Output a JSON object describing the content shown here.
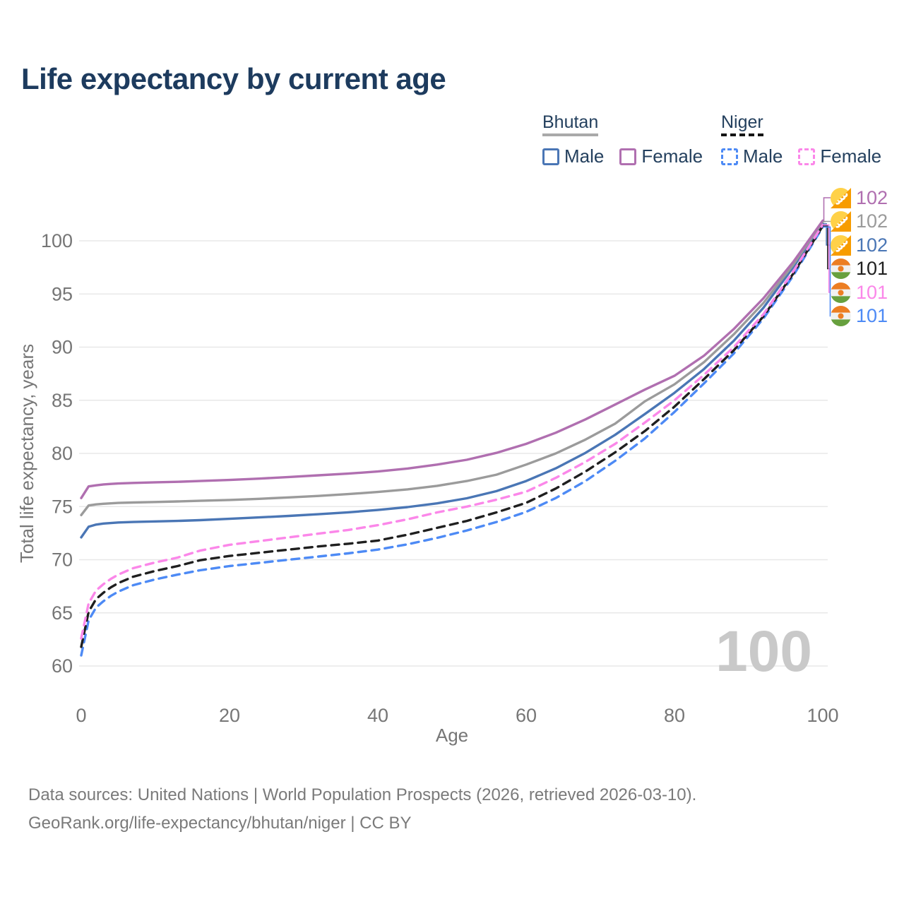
{
  "title": "Life expectancy by current age",
  "legend": {
    "groups": [
      {
        "name": "Bhutan",
        "line_style": "solid",
        "items": [
          {
            "label": "Male",
            "color": "#4a76b5",
            "dash": false
          },
          {
            "label": "Female",
            "color": "#b06fb0",
            "dash": false
          }
        ]
      },
      {
        "name": "Niger",
        "line_style": "dashed",
        "items": [
          {
            "label": "Male",
            "color": "#4d8af5",
            "dash": true
          },
          {
            "label": "Female",
            "color": "#fb87e9",
            "dash": true
          }
        ]
      }
    ]
  },
  "chart_data": {
    "type": "line",
    "title": "Life expectancy by current age",
    "xlabel": "Age",
    "ylabel": "Total life expectancy, years",
    "xlim": [
      0,
      100
    ],
    "ylim": [
      58.5,
      103
    ],
    "x_ticks": [
      0,
      20,
      40,
      60,
      80,
      100
    ],
    "y_ticks": [
      60,
      65,
      70,
      75,
      80,
      85,
      90,
      95,
      100
    ],
    "grid": "horizontal",
    "legend_position": "top-right",
    "age_counter_watermark": "100",
    "x": [
      0,
      1,
      2,
      3,
      4,
      5,
      7,
      10,
      13,
      16,
      20,
      24,
      28,
      32,
      36,
      40,
      44,
      48,
      52,
      56,
      60,
      64,
      68,
      72,
      76,
      80,
      84,
      88,
      92,
      96,
      100
    ],
    "series": [
      {
        "id": "bhutan-male",
        "country": "Bhutan",
        "sex": "Male",
        "color": "#4a76b5",
        "dash": false,
        "values": [
          72.1,
          73.1,
          73.3,
          73.4,
          73.45,
          73.5,
          73.55,
          73.6,
          73.65,
          73.72,
          73.85,
          73.98,
          74.12,
          74.28,
          74.46,
          74.68,
          74.95,
          75.3,
          75.78,
          76.45,
          77.4,
          78.6,
          80.05,
          81.75,
          83.7,
          85.7,
          87.95,
          90.6,
          93.7,
          97.5,
          101.6
        ]
      },
      {
        "id": "bhutan-both",
        "country": "Bhutan",
        "sex": "Both sexes",
        "color": "#9b9b9b",
        "dash": false,
        "values": [
          74.2,
          75.1,
          75.2,
          75.26,
          75.3,
          75.34,
          75.38,
          75.43,
          75.48,
          75.54,
          75.62,
          75.73,
          75.86,
          76.0,
          76.17,
          76.37,
          76.62,
          76.95,
          77.4,
          78.0,
          78.95,
          80.0,
          81.3,
          82.8,
          84.9,
          86.5,
          88.6,
          91.2,
          94.15,
          97.75,
          101.8
        ]
      },
      {
        "id": "niger-male",
        "country": "Niger",
        "sex": "Male",
        "color": "#4d8af5",
        "dash": true,
        "values": [
          61.0,
          64.3,
          65.5,
          66.1,
          66.6,
          67.0,
          67.6,
          68.15,
          68.6,
          69.0,
          69.4,
          69.7,
          70.0,
          70.3,
          70.6,
          70.95,
          71.45,
          72.05,
          72.75,
          73.55,
          74.5,
          75.8,
          77.4,
          79.3,
          81.4,
          83.9,
          86.6,
          89.4,
          92.7,
          96.7,
          101.3
        ]
      },
      {
        "id": "niger-both",
        "country": "Niger",
        "sex": "Both sexes",
        "color": "#1f1f1f",
        "dash": true,
        "values": [
          61.8,
          65.1,
          66.3,
          66.9,
          67.4,
          67.8,
          68.4,
          68.95,
          69.4,
          69.95,
          70.35,
          70.65,
          70.95,
          71.25,
          71.5,
          71.8,
          72.35,
          73.0,
          73.65,
          74.45,
          75.35,
          76.7,
          78.3,
          80.1,
          82.1,
          84.4,
          87.0,
          89.7,
          92.9,
          96.9,
          101.4
        ]
      },
      {
        "id": "niger-female",
        "country": "Niger",
        "sex": "Female",
        "color": "#fb87e9",
        "dash": true,
        "values": [
          62.6,
          65.9,
          67.1,
          67.7,
          68.2,
          68.6,
          69.2,
          69.75,
          70.2,
          70.85,
          71.4,
          71.75,
          72.1,
          72.45,
          72.8,
          73.25,
          73.8,
          74.45,
          75.0,
          75.65,
          76.4,
          77.7,
          79.2,
          80.9,
          82.9,
          85.0,
          87.4,
          90.0,
          93.1,
          97.1,
          101.5
        ]
      },
      {
        "id": "bhutan-female",
        "country": "Bhutan",
        "sex": "Female",
        "color": "#b06fb0",
        "dash": false,
        "values": [
          75.8,
          76.9,
          77.0,
          77.08,
          77.13,
          77.17,
          77.22,
          77.28,
          77.33,
          77.4,
          77.5,
          77.63,
          77.78,
          77.94,
          78.1,
          78.3,
          78.58,
          78.95,
          79.4,
          80.05,
          80.9,
          81.95,
          83.2,
          84.6,
          86.0,
          87.3,
          89.2,
          91.7,
          94.6,
          98.0,
          101.9
        ]
      }
    ],
    "end_labels": [
      {
        "series_ref": "bhutan-female",
        "flag": "bhutan-flag",
        "value": "102",
        "color": "#b06fb0"
      },
      {
        "series_ref": "bhutan-both",
        "flag": "bhutan-flag",
        "value": "102",
        "color": "#9b9b9b"
      },
      {
        "series_ref": "bhutan-male",
        "flag": "bhutan-flag",
        "value": "102",
        "color": "#4a76b5"
      },
      {
        "series_ref": "niger-both",
        "flag": "niger-flag",
        "value": "101",
        "color": "#1f1f1f"
      },
      {
        "series_ref": "niger-female",
        "flag": "niger-flag",
        "value": "101",
        "color": "#fb87e9"
      },
      {
        "series_ref": "niger-male",
        "flag": "niger-flag",
        "value": "101",
        "color": "#4d8af5"
      }
    ]
  },
  "colors": {
    "title_text": "#1d3b5e",
    "legend_text": "#24405e",
    "axis_text": "#767676",
    "gridline": "#e8e8e8",
    "watermark": "#c9c9c9",
    "footer_text": "#7a7a7a"
  },
  "footer": {
    "line1": "Data sources: United Nations | World Population Prospects (2026, retrieved 2026-03-10).",
    "line2": "GeoRank.org/life-expectancy/bhutan/niger | CC BY"
  }
}
